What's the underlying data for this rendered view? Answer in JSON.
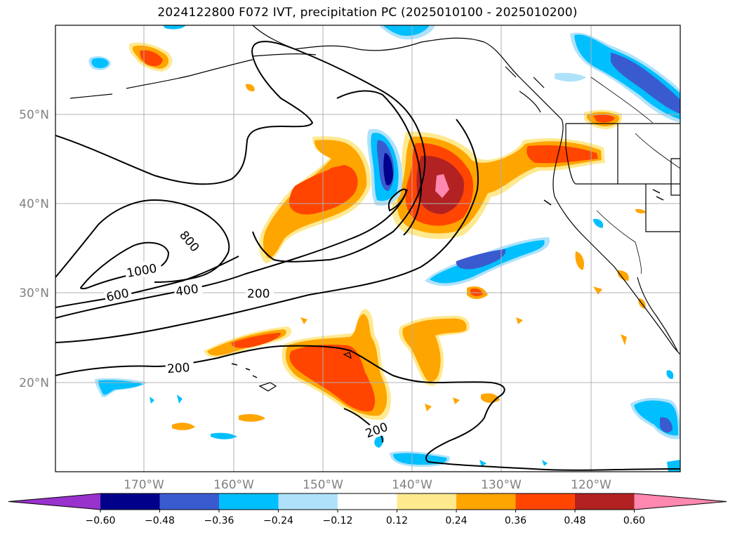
{
  "title": "2024122800 F072 IVT, precipitation PC (2025010100 - 2025010200)",
  "map": {
    "lon_labels": [
      "170°W",
      "160°W",
      "150°W",
      "140°W",
      "130°W",
      "120°W"
    ],
    "lat_labels": [
      "50°N",
      "40°N",
      "30°N",
      "20°N"
    ],
    "contour_labels": [
      "800",
      "1000",
      "600",
      "400",
      "200",
      "200",
      "200"
    ]
  },
  "colorbar": {
    "ticks": [
      "−0.60",
      "−0.48",
      "−0.36",
      "−0.24",
      "−0.12",
      "0.12",
      "0.24",
      "0.36",
      "0.48",
      "0.60"
    ],
    "colors": [
      "#9932cc",
      "#00008b",
      "#3a5bd0",
      "#00bfff",
      "#afe2fa",
      "#ffffff",
      "#ffe98f",
      "#ffa500",
      "#ff4500",
      "#b22222",
      "#ff88b0"
    ]
  }
}
